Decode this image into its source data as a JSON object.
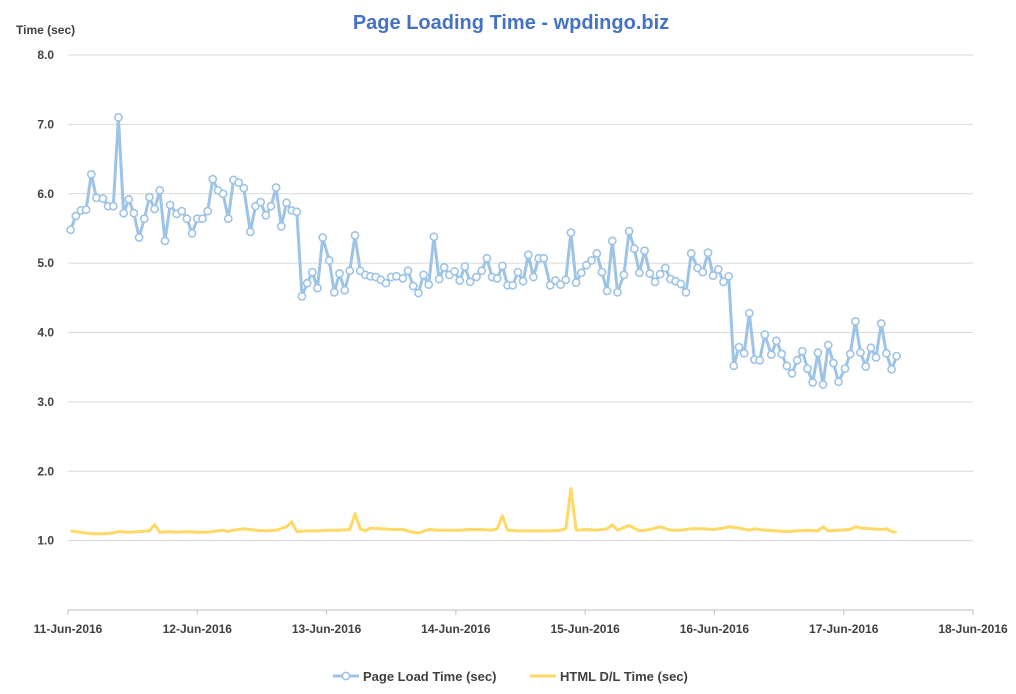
{
  "colors": {
    "title": "#4472C4",
    "series1": "#9DC3E6",
    "series2": "#FFD966",
    "grid": "#D9D9D9",
    "axis": "#BFBFBF",
    "text": "#404040"
  },
  "chart_data": {
    "type": "line",
    "title": "Page Loading Time - wpdingo.biz",
    "ylabel": "Time (sec)",
    "xlabel": "",
    "ylim": [
      0,
      8
    ],
    "yticks": [
      "8.0",
      "7.0",
      "6.0",
      "5.0",
      "4.0",
      "3.0",
      "2.0",
      "1.0"
    ],
    "ytick_values": [
      8,
      7,
      6,
      5,
      4,
      3,
      2,
      1
    ],
    "xlim": [
      0,
      7
    ],
    "xticks": [
      "11-Jun-2016",
      "12-Jun-2016",
      "13-Jun-2016",
      "14-Jun-2016",
      "15-Jun-2016",
      "16-Jun-2016",
      "17-Jun-2016",
      "18-Jun-2016"
    ],
    "grid": true,
    "legend_position": "bottom",
    "x_units": "days since 11-Jun-2016 00:00",
    "series": [
      {
        "name": "Page Load Time (sec)",
        "marker": "circle",
        "points": [
          [
            0.02,
            5.48
          ],
          [
            0.06,
            5.68
          ],
          [
            0.1,
            5.76
          ],
          [
            0.14,
            5.77
          ],
          [
            0.18,
            6.28
          ],
          [
            0.22,
            5.94
          ],
          [
            0.27,
            5.93
          ],
          [
            0.31,
            5.82
          ],
          [
            0.35,
            5.82
          ],
          [
            0.39,
            7.1
          ],
          [
            0.43,
            5.72
          ],
          [
            0.47,
            5.92
          ],
          [
            0.51,
            5.72
          ],
          [
            0.55,
            5.37
          ],
          [
            0.59,
            5.64
          ],
          [
            0.63,
            5.95
          ],
          [
            0.67,
            5.78
          ],
          [
            0.71,
            6.05
          ],
          [
            0.75,
            5.32
          ],
          [
            0.79,
            5.84
          ],
          [
            0.84,
            5.71
          ],
          [
            0.88,
            5.75
          ],
          [
            0.92,
            5.64
          ],
          [
            0.96,
            5.43
          ],
          [
            1.0,
            5.64
          ],
          [
            1.04,
            5.64
          ],
          [
            1.08,
            5.75
          ],
          [
            1.12,
            6.21
          ],
          [
            1.16,
            6.05
          ],
          [
            1.2,
            6.0
          ],
          [
            1.24,
            5.64
          ],
          [
            1.28,
            6.2
          ],
          [
            1.32,
            6.16
          ],
          [
            1.36,
            6.08
          ],
          [
            1.41,
            5.45
          ],
          [
            1.45,
            5.82
          ],
          [
            1.49,
            5.88
          ],
          [
            1.53,
            5.69
          ],
          [
            1.57,
            5.82
          ],
          [
            1.61,
            6.09
          ],
          [
            1.65,
            5.53
          ],
          [
            1.69,
            5.87
          ],
          [
            1.73,
            5.76
          ],
          [
            1.77,
            5.74
          ],
          [
            1.81,
            4.52
          ],
          [
            1.85,
            4.71
          ],
          [
            1.89,
            4.87
          ],
          [
            1.93,
            4.64
          ],
          [
            1.97,
            5.37
          ],
          [
            2.02,
            5.04
          ],
          [
            2.06,
            4.58
          ],
          [
            2.1,
            4.85
          ],
          [
            2.14,
            4.61
          ],
          [
            2.18,
            4.89
          ],
          [
            2.22,
            5.4
          ],
          [
            2.26,
            4.89
          ],
          [
            2.3,
            4.83
          ],
          [
            2.34,
            4.81
          ],
          [
            2.38,
            4.8
          ],
          [
            2.42,
            4.76
          ],
          [
            2.46,
            4.71
          ],
          [
            2.5,
            4.8
          ],
          [
            2.54,
            4.81
          ],
          [
            2.59,
            4.78
          ],
          [
            2.63,
            4.89
          ],
          [
            2.67,
            4.67
          ],
          [
            2.71,
            4.57
          ],
          [
            2.75,
            4.83
          ],
          [
            2.79,
            4.69
          ],
          [
            2.83,
            5.38
          ],
          [
            2.87,
            4.77
          ],
          [
            2.91,
            4.94
          ],
          [
            2.95,
            4.83
          ],
          [
            2.99,
            4.88
          ],
          [
            3.03,
            4.75
          ],
          [
            3.07,
            4.95
          ],
          [
            3.11,
            4.73
          ],
          [
            3.16,
            4.8
          ],
          [
            3.2,
            4.89
          ],
          [
            3.24,
            5.07
          ],
          [
            3.28,
            4.8
          ],
          [
            3.32,
            4.78
          ],
          [
            3.36,
            4.96
          ],
          [
            3.4,
            4.68
          ],
          [
            3.44,
            4.68
          ],
          [
            3.48,
            4.87
          ],
          [
            3.52,
            4.74
          ],
          [
            3.56,
            5.12
          ],
          [
            3.6,
            4.8
          ],
          [
            3.64,
            5.07
          ],
          [
            3.68,
            5.07
          ],
          [
            3.73,
            4.68
          ],
          [
            3.77,
            4.75
          ],
          [
            3.81,
            4.69
          ],
          [
            3.85,
            4.76
          ],
          [
            3.89,
            5.44
          ],
          [
            3.93,
            4.72
          ],
          [
            3.97,
            4.86
          ],
          [
            4.01,
            4.97
          ],
          [
            4.05,
            5.04
          ],
          [
            4.09,
            5.14
          ],
          [
            4.13,
            4.87
          ],
          [
            4.17,
            4.6
          ],
          [
            4.21,
            5.32
          ],
          [
            4.25,
            4.58
          ],
          [
            4.3,
            4.83
          ],
          [
            4.34,
            5.46
          ],
          [
            4.38,
            5.21
          ],
          [
            4.42,
            4.86
          ],
          [
            4.46,
            5.18
          ],
          [
            4.5,
            4.85
          ],
          [
            4.54,
            4.73
          ],
          [
            4.58,
            4.84
          ],
          [
            4.62,
            4.93
          ],
          [
            4.66,
            4.77
          ],
          [
            4.7,
            4.74
          ],
          [
            4.74,
            4.7
          ],
          [
            4.78,
            4.58
          ],
          [
            4.82,
            5.14
          ],
          [
            4.87,
            4.93
          ],
          [
            4.91,
            4.87
          ],
          [
            4.95,
            5.15
          ],
          [
            4.99,
            4.82
          ],
          [
            5.03,
            4.91
          ],
          [
            5.07,
            4.73
          ],
          [
            5.11,
            4.81
          ],
          [
            5.15,
            3.52
          ],
          [
            5.19,
            3.79
          ],
          [
            5.23,
            3.7
          ],
          [
            5.27,
            4.28
          ],
          [
            5.31,
            3.61
          ],
          [
            5.35,
            3.6
          ],
          [
            5.39,
            3.97
          ],
          [
            5.44,
            3.68
          ],
          [
            5.48,
            3.88
          ],
          [
            5.52,
            3.69
          ],
          [
            5.56,
            3.52
          ],
          [
            5.6,
            3.41
          ],
          [
            5.64,
            3.6
          ],
          [
            5.68,
            3.73
          ],
          [
            5.72,
            3.48
          ],
          [
            5.76,
            3.28
          ],
          [
            5.8,
            3.71
          ],
          [
            5.84,
            3.25
          ],
          [
            5.88,
            3.82
          ],
          [
            5.92,
            3.56
          ],
          [
            5.96,
            3.29
          ],
          [
            6.01,
            3.48
          ],
          [
            6.05,
            3.69
          ],
          [
            6.09,
            4.16
          ],
          [
            6.13,
            3.71
          ],
          [
            6.17,
            3.51
          ],
          [
            6.21,
            3.78
          ],
          [
            6.25,
            3.64
          ],
          [
            6.29,
            4.13
          ],
          [
            6.33,
            3.7
          ],
          [
            6.37,
            3.47
          ],
          [
            6.41,
            3.66
          ]
        ]
      },
      {
        "name": "HTML D/L Time (sec)",
        "marker": "none",
        "points": [
          [
            0.02,
            1.14
          ],
          [
            0.1,
            1.12
          ],
          [
            0.18,
            1.1
          ],
          [
            0.27,
            1.1
          ],
          [
            0.35,
            1.11
          ],
          [
            0.39,
            1.13
          ],
          [
            0.47,
            1.12
          ],
          [
            0.55,
            1.13
          ],
          [
            0.63,
            1.14
          ],
          [
            0.67,
            1.23
          ],
          [
            0.71,
            1.12
          ],
          [
            0.79,
            1.13
          ],
          [
            0.84,
            1.12
          ],
          [
            0.92,
            1.13
          ],
          [
            1.0,
            1.12
          ],
          [
            1.08,
            1.12
          ],
          [
            1.16,
            1.14
          ],
          [
            1.2,
            1.15
          ],
          [
            1.24,
            1.13
          ],
          [
            1.28,
            1.15
          ],
          [
            1.36,
            1.17
          ],
          [
            1.45,
            1.15
          ],
          [
            1.53,
            1.14
          ],
          [
            1.61,
            1.15
          ],
          [
            1.69,
            1.2
          ],
          [
            1.73,
            1.27
          ],
          [
            1.77,
            1.13
          ],
          [
            1.85,
            1.14
          ],
          [
            1.93,
            1.14
          ],
          [
            2.02,
            1.15
          ],
          [
            2.1,
            1.15
          ],
          [
            2.18,
            1.16
          ],
          [
            2.22,
            1.39
          ],
          [
            2.26,
            1.17
          ],
          [
            2.3,
            1.14
          ],
          [
            2.34,
            1.18
          ],
          [
            2.42,
            1.17
          ],
          [
            2.5,
            1.16
          ],
          [
            2.59,
            1.16
          ],
          [
            2.67,
            1.12
          ],
          [
            2.71,
            1.11
          ],
          [
            2.79,
            1.16
          ],
          [
            2.87,
            1.15
          ],
          [
            2.95,
            1.15
          ],
          [
            3.03,
            1.15
          ],
          [
            3.11,
            1.16
          ],
          [
            3.2,
            1.16
          ],
          [
            3.28,
            1.15
          ],
          [
            3.32,
            1.17
          ],
          [
            3.36,
            1.36
          ],
          [
            3.4,
            1.15
          ],
          [
            3.48,
            1.14
          ],
          [
            3.56,
            1.14
          ],
          [
            3.64,
            1.14
          ],
          [
            3.73,
            1.14
          ],
          [
            3.81,
            1.15
          ],
          [
            3.85,
            1.17
          ],
          [
            3.89,
            1.75
          ],
          [
            3.93,
            1.15
          ],
          [
            4.01,
            1.16
          ],
          [
            4.09,
            1.15
          ],
          [
            4.17,
            1.17
          ],
          [
            4.21,
            1.23
          ],
          [
            4.25,
            1.15
          ],
          [
            4.34,
            1.22
          ],
          [
            4.42,
            1.14
          ],
          [
            4.5,
            1.16
          ],
          [
            4.58,
            1.2
          ],
          [
            4.66,
            1.15
          ],
          [
            4.74,
            1.15
          ],
          [
            4.82,
            1.17
          ],
          [
            4.91,
            1.17
          ],
          [
            4.99,
            1.16
          ],
          [
            5.07,
            1.18
          ],
          [
            5.11,
            1.2
          ],
          [
            5.19,
            1.18
          ],
          [
            5.27,
            1.15
          ],
          [
            5.31,
            1.17
          ],
          [
            5.39,
            1.15
          ],
          [
            5.48,
            1.14
          ],
          [
            5.56,
            1.13
          ],
          [
            5.64,
            1.14
          ],
          [
            5.72,
            1.15
          ],
          [
            5.8,
            1.14
          ],
          [
            5.84,
            1.2
          ],
          [
            5.88,
            1.14
          ],
          [
            5.96,
            1.15
          ],
          [
            6.05,
            1.16
          ],
          [
            6.09,
            1.2
          ],
          [
            6.13,
            1.18
          ],
          [
            6.21,
            1.17
          ],
          [
            6.29,
            1.16
          ],
          [
            6.33,
            1.17
          ],
          [
            6.37,
            1.13
          ],
          [
            6.41,
            1.12
          ]
        ]
      }
    ]
  }
}
